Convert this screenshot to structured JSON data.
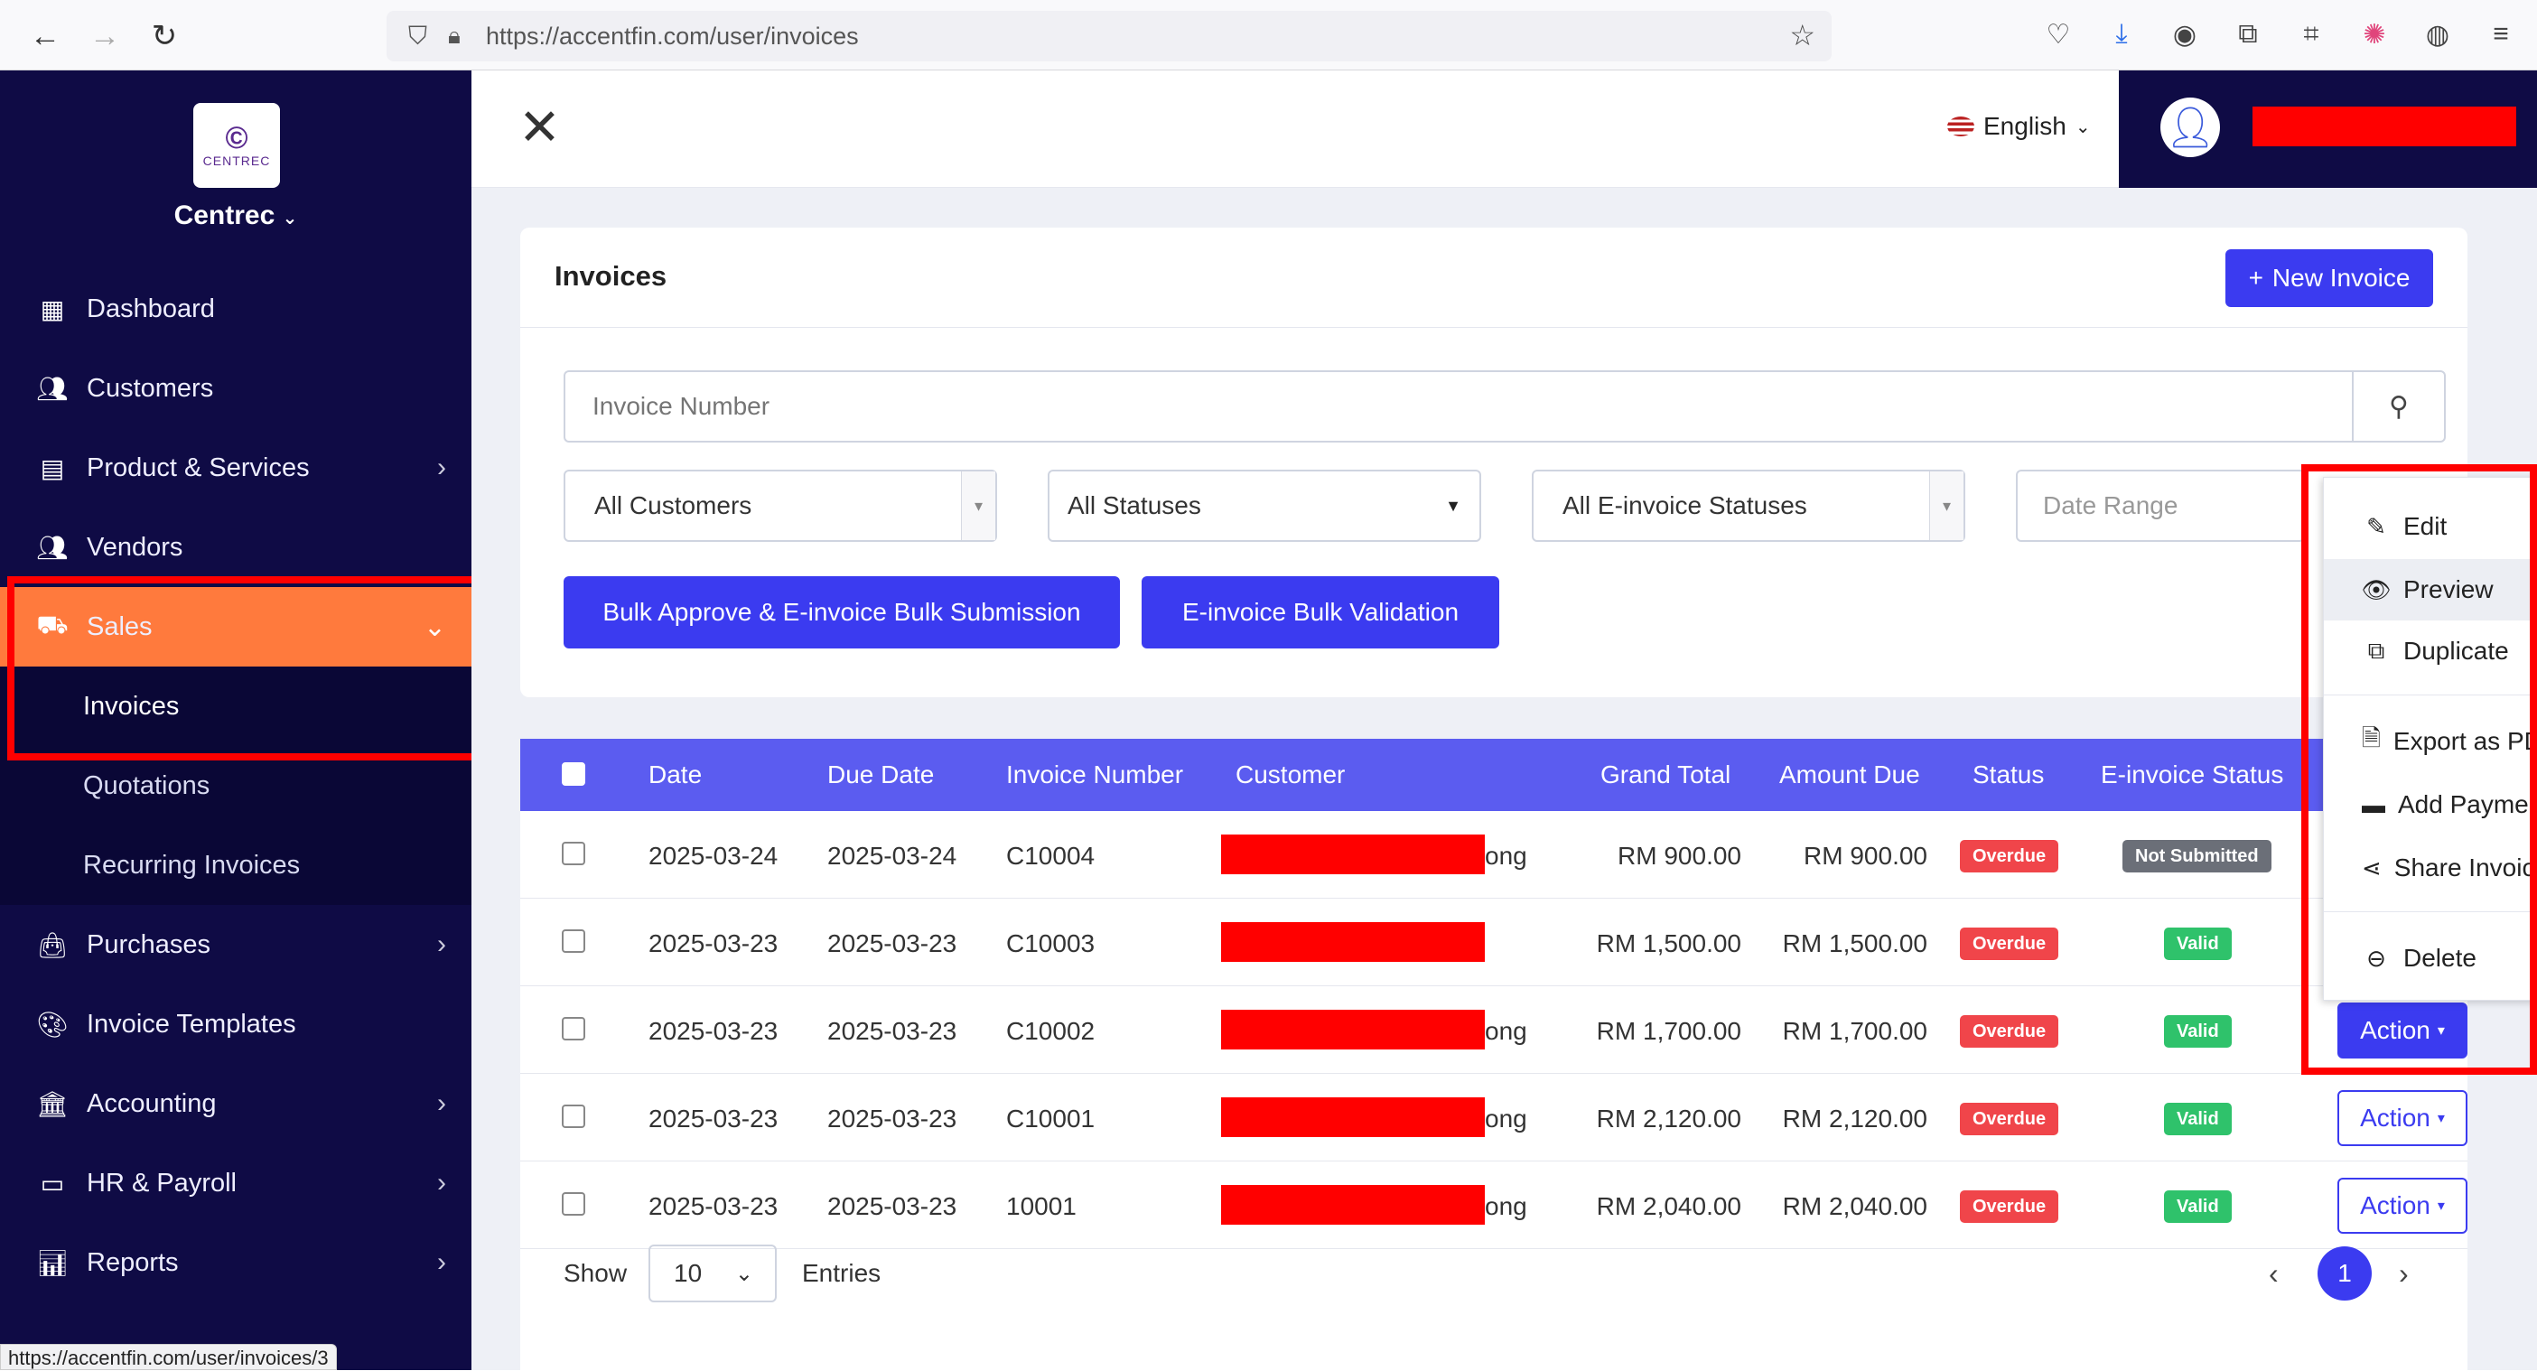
{
  "browser": {
    "url": "https://accentfin.com/user/invoices",
    "status_url": "https://accentfin.com/user/invoices/3"
  },
  "sidebar": {
    "logo_text": "CENTREC",
    "company": "Centrec",
    "items": [
      {
        "label": "Dashboard",
        "icon": "dashboard-icon"
      },
      {
        "label": "Customers",
        "icon": "users-icon"
      },
      {
        "label": "Product & Services",
        "icon": "box-icon"
      },
      {
        "label": "Vendors",
        "icon": "users-icon"
      },
      {
        "label": "Sales",
        "icon": "basket-icon"
      },
      {
        "label": "Purchases",
        "icon": "bag-icon"
      },
      {
        "label": "Invoice Templates",
        "icon": "palette-icon"
      },
      {
        "label": "Accounting",
        "icon": "bank-icon"
      },
      {
        "label": "HR & Payroll",
        "icon": "id-card-icon"
      },
      {
        "label": "Reports",
        "icon": "chart-icon"
      }
    ],
    "sales_sub": [
      "Invoices",
      "Quotations",
      "Recurring Invoices"
    ]
  },
  "header": {
    "language": "English"
  },
  "invoices": {
    "title": "Invoices",
    "new_invoice_label": "New Invoice",
    "search_placeholder": "Invoice Number",
    "filters": {
      "customers": "All Customers",
      "statuses": "All Statuses",
      "einvoice_statuses": "All E-invoice Statuses",
      "date_range": "Date Range"
    },
    "bulk_approve_label": "Bulk Approve & E-invoice Bulk Submission",
    "bulk_validation_label": "E-invoice Bulk Validation",
    "columns": [
      "Date",
      "Due Date",
      "Invoice Number",
      "Customer",
      "Grand Total",
      "Amount Due",
      "Status",
      "E-invoice Status"
    ],
    "rows": [
      {
        "date": "2025-03-24",
        "due": "2025-03-24",
        "number": "C10004",
        "customer_suffix": "ong",
        "grand_total": "RM 900.00",
        "amount_due": "RM 900.00",
        "status": "Overdue",
        "einvoice": "Not Submitted",
        "einvoice_type": "notsub",
        "action": ""
      },
      {
        "date": "2025-03-23",
        "due": "2025-03-23",
        "number": "C10003",
        "customer_suffix": "",
        "grand_total": "RM 1,500.00",
        "amount_due": "RM 1,500.00",
        "status": "Overdue",
        "einvoice": "Valid",
        "einvoice_type": "valid",
        "action": ""
      },
      {
        "date": "2025-03-23",
        "due": "2025-03-23",
        "number": "C10002",
        "customer_suffix": "ong",
        "grand_total": "RM 1,700.00",
        "amount_due": "RM 1,700.00",
        "status": "Overdue",
        "einvoice": "Valid",
        "einvoice_type": "valid",
        "action": "Action"
      },
      {
        "date": "2025-03-23",
        "due": "2025-03-23",
        "number": "C10001",
        "customer_suffix": "ong",
        "grand_total": "RM 2,120.00",
        "amount_due": "RM 2,120.00",
        "status": "Overdue",
        "einvoice": "Valid",
        "einvoice_type": "valid",
        "action": "Action"
      },
      {
        "date": "2025-03-23",
        "due": "2025-03-23",
        "number": "10001",
        "customer_suffix": "ong",
        "grand_total": "RM 2,040.00",
        "amount_due": "RM 2,040.00",
        "status": "Overdue",
        "einvoice": "Valid",
        "einvoice_type": "valid",
        "action": "Action"
      }
    ],
    "show_label": "Show",
    "entries_value": "10",
    "entries_label": "Entries",
    "current_page": "1"
  },
  "action_menu": {
    "items": [
      "Edit",
      "Preview",
      "Duplicate",
      "Export as PDF",
      "Add Payment",
      "Share Invoice",
      "Delete"
    ]
  },
  "colors": {
    "sidebar": "#0f0b45",
    "accent": "#3b3bf0",
    "sales_active": "#ff7a3d",
    "highlight": "#ff0000"
  }
}
